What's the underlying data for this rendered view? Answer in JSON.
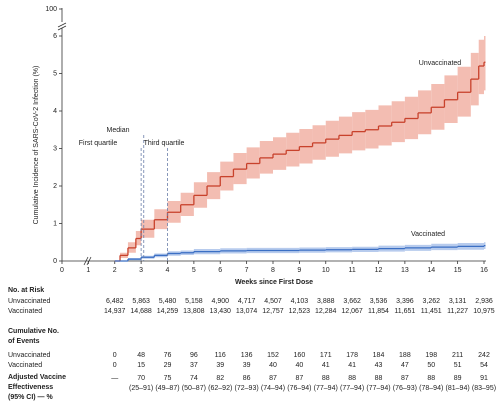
{
  "chart_data": {
    "type": "step",
    "y_label": "Cumulative Incidence of SARS-CoV-2 Infection (%)",
    "x_label": "Weeks since First Dose",
    "xlim": [
      0,
      16
    ],
    "xticks": [
      0,
      1,
      2,
      3,
      4,
      5,
      6,
      7,
      8,
      9,
      10,
      11,
      12,
      13,
      14,
      15,
      16
    ],
    "ylim": [
      0,
      6
    ],
    "yticks": [
      0,
      1,
      2,
      3,
      4,
      5,
      6
    ],
    "ybreak_ticks": [
      100
    ],
    "series": [
      {
        "name": "Unvaccinated",
        "color": "#c8422c",
        "band_color": "#f3bdb2",
        "x": [
          2,
          2.2,
          2.5,
          2.8,
          3,
          3.5,
          4,
          4.5,
          5,
          5.5,
          6,
          6.5,
          7,
          7.5,
          8,
          8.5,
          9,
          9.5,
          10,
          10.5,
          11,
          11.5,
          12,
          12.5,
          13,
          13.5,
          14,
          14.5,
          15,
          15.5,
          15.8,
          16
        ],
        "values": [
          0,
          0.15,
          0.35,
          0.6,
          0.85,
          1.1,
          1.3,
          1.5,
          1.75,
          2.0,
          2.25,
          2.45,
          2.6,
          2.75,
          2.85,
          2.95,
          3.05,
          3.15,
          3.25,
          3.35,
          3.45,
          3.5,
          3.6,
          3.7,
          3.8,
          3.95,
          4.1,
          4.3,
          4.5,
          4.85,
          5.2,
          5.3
        ],
        "lower": [
          0,
          0.08,
          0.22,
          0.42,
          0.62,
          0.85,
          1.02,
          1.2,
          1.42,
          1.65,
          1.88,
          2.05,
          2.2,
          2.33,
          2.43,
          2.52,
          2.6,
          2.7,
          2.78,
          2.87,
          2.95,
          3.0,
          3.08,
          3.17,
          3.25,
          3.38,
          3.5,
          3.68,
          3.85,
          4.15,
          4.45,
          4.55
        ],
        "upper": [
          0,
          0.22,
          0.5,
          0.8,
          1.1,
          1.38,
          1.6,
          1.82,
          2.1,
          2.37,
          2.65,
          2.88,
          3.03,
          3.2,
          3.3,
          3.42,
          3.52,
          3.62,
          3.74,
          3.85,
          3.97,
          4.03,
          4.15,
          4.26,
          4.38,
          4.55,
          4.72,
          4.95,
          5.18,
          5.55,
          5.9,
          6.0
        ]
      },
      {
        "name": "Vaccinated",
        "color": "#3b6fc4",
        "band_color": "#b7cbed",
        "x": [
          2,
          2.5,
          3,
          3.5,
          4,
          4.5,
          5,
          6,
          7,
          8,
          9,
          10,
          11,
          12,
          13,
          14,
          15,
          16
        ],
        "values": [
          0,
          0.05,
          0.1,
          0.15,
          0.2,
          0.22,
          0.25,
          0.27,
          0.28,
          0.28,
          0.29,
          0.3,
          0.31,
          0.33,
          0.35,
          0.37,
          0.39,
          0.41
        ],
        "lower": [
          0,
          0.02,
          0.06,
          0.1,
          0.14,
          0.16,
          0.18,
          0.2,
          0.21,
          0.21,
          0.22,
          0.23,
          0.24,
          0.25,
          0.27,
          0.29,
          0.3,
          0.32
        ],
        "upper": [
          0,
          0.08,
          0.14,
          0.2,
          0.26,
          0.28,
          0.32,
          0.34,
          0.35,
          0.35,
          0.36,
          0.37,
          0.38,
          0.41,
          0.43,
          0.46,
          0.48,
          0.5
        ]
      }
    ],
    "quartiles": [
      {
        "label": "First quartile",
        "x": 3.0
      },
      {
        "label": "Median",
        "x": 3.1
      },
      {
        "label": "Third quartile",
        "x": 4.0
      }
    ]
  },
  "table": {
    "columns_x": [
      2,
      3,
      4,
      5,
      6,
      7,
      8,
      9,
      10,
      11,
      12,
      13,
      14,
      15,
      16
    ],
    "at_risk": {
      "title": "No. at Risk",
      "rows": [
        {
          "label": "Unvaccinated",
          "values": [
            "6,482",
            "5,863",
            "5,480",
            "5,158",
            "4,900",
            "4,717",
            "4,507",
            "4,103",
            "3,888",
            "3,662",
            "3,536",
            "3,396",
            "3,262",
            "3,131",
            "2,936"
          ]
        },
        {
          "label": "Vaccinated",
          "values": [
            "14,937",
            "14,688",
            "14,259",
            "13,808",
            "13,430",
            "13,074",
            "12,757",
            "12,523",
            "12,284",
            "12,067",
            "11,854",
            "11,651",
            "11,451",
            "11,227",
            "10,975"
          ]
        }
      ]
    },
    "events": {
      "title_lines": [
        "Cumulative No.",
        "of Events"
      ],
      "rows": [
        {
          "label": "Unvaccinated",
          "values": [
            0,
            48,
            76,
            96,
            116,
            136,
            152,
            160,
            171,
            178,
            184,
            188,
            198,
            211,
            242
          ]
        },
        {
          "label": "Vaccinated",
          "values": [
            0,
            15,
            29,
            37,
            39,
            39,
            40,
            40,
            41,
            41,
            43,
            47,
            50,
            51,
            54
          ]
        }
      ]
    },
    "effectiveness": {
      "title_lines": [
        "Adjusted Vaccine",
        "Effectiveness",
        "(95% CI) — %"
      ],
      "values": [
        "—",
        "70",
        "75",
        "74",
        "82",
        "86",
        "87",
        "87",
        "88",
        "88",
        "88",
        "87",
        "88",
        "89",
        "91"
      ],
      "ci": [
        null,
        "(25–91)",
        "(49–87)",
        "(50–87)",
        "(62–92)",
        "(72–93)",
        "(74–94)",
        "(76–94)",
        "(77–94)",
        "(77–94)",
        "(77–94)",
        "(76–93)",
        "(78–94)",
        "(81–94)",
        "(83–95)"
      ]
    }
  }
}
